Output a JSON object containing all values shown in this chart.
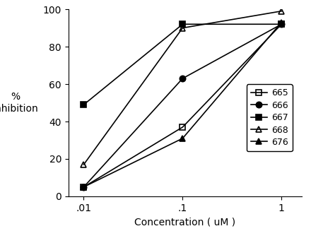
{
  "x": [
    0.01,
    0.1,
    1.0
  ],
  "series": [
    {
      "label": "665",
      "values": [
        5,
        37,
        92
      ],
      "marker": "s",
      "fillstyle": "none",
      "color": "black"
    },
    {
      "label": "666",
      "values": [
        5,
        63,
        92
      ],
      "marker": "o",
      "fillstyle": "full",
      "color": "black"
    },
    {
      "label": "667",
      "values": [
        49,
        92,
        92
      ],
      "marker": "s",
      "fillstyle": "full",
      "color": "black"
    },
    {
      "label": "668",
      "values": [
        17,
        90,
        99
      ],
      "marker": "^",
      "fillstyle": "none",
      "color": "black"
    },
    {
      "label": "676",
      "values": [
        5,
        31,
        93
      ],
      "marker": "^",
      "fillstyle": "full",
      "color": "black"
    }
  ],
  "xlabel": "Concentration ( uM )",
  "ylabel_line1": "%",
  "ylabel_line2": "Inhibition",
  "ylim": [
    0,
    100
  ],
  "xtick_positions": [
    0.01,
    0.1,
    1.0
  ],
  "xtick_labels": [
    ".01",
    ".1",
    "1"
  ],
  "ytick_positions": [
    0,
    20,
    40,
    60,
    80,
    100
  ],
  "background_color": "#ffffff",
  "linewidth": 1.2,
  "markersize": 6
}
